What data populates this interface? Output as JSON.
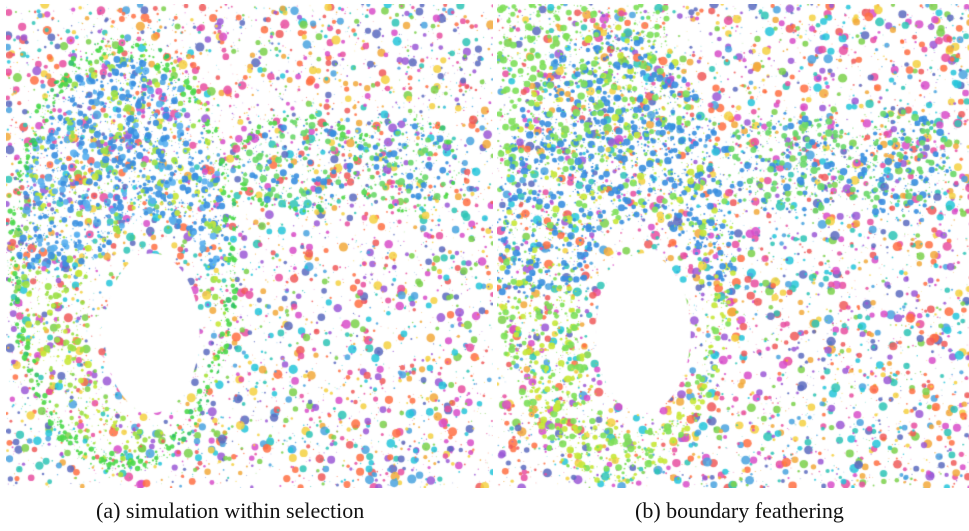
{
  "figure": {
    "panels": [
      {
        "caption": "(a) simulation within selection"
      },
      {
        "caption": "(b) boundary feathering"
      }
    ]
  }
}
